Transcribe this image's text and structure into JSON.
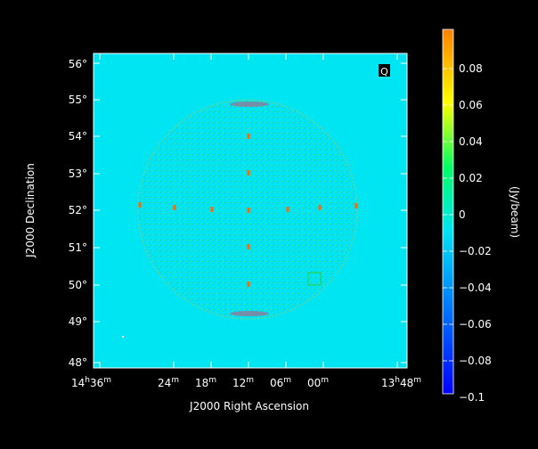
{
  "figure": {
    "stokes_label": "Q",
    "xlabel": "J2000 Right Ascension",
    "ylabel": "J2000 Declination",
    "colorbar_label": "(Jy/beam)",
    "y_ticks": [
      "48°",
      "49°",
      "50°",
      "51°",
      "52°",
      "53°",
      "54°",
      "55°",
      "56°"
    ],
    "x_ticks": [
      {
        "main": "14",
        "sup1": "h",
        "main2": "36",
        "sup2": "m"
      },
      {
        "main": "24",
        "sup1": "m"
      },
      {
        "main": "18",
        "sup1": "m"
      },
      {
        "main": "12",
        "sup1": "m"
      },
      {
        "main": "06",
        "sup1": "m"
      },
      {
        "main": "00",
        "sup1": "m"
      },
      {
        "main": "13",
        "sup1": "h",
        "main2": "48",
        "sup2": "m"
      }
    ],
    "colorbar_ticks": [
      "0.08",
      "0.06",
      "0.04",
      "0.02",
      "0",
      "−0.02",
      "−0.04",
      "−0.06",
      "−0.08",
      "−0.1"
    ],
    "colors": {
      "background": "#000000",
      "map_fill": "#00e5f2",
      "colormap": [
        "#0000ff",
        "#0066ff",
        "#00e5f2",
        "#00ff66",
        "#ffff00",
        "#ff8000"
      ],
      "source_marker": "#ff6a00",
      "annotation_box": "#33cc33"
    }
  }
}
